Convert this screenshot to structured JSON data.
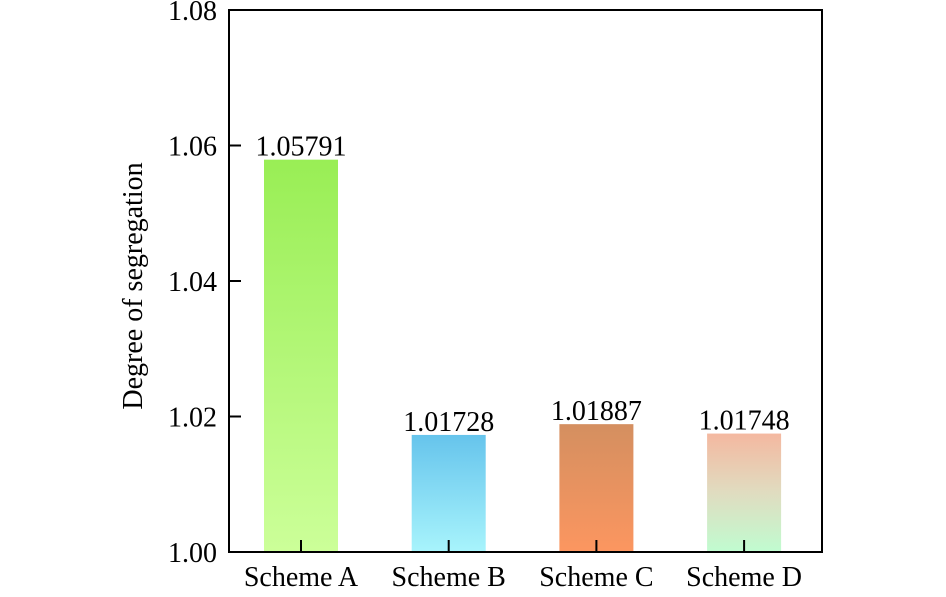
{
  "chart_data": {
    "type": "bar",
    "title": "",
    "xlabel": "",
    "ylabel": "Degree  of  segregation",
    "ylim": [
      1.0,
      1.08
    ],
    "yticks": [
      "1.00",
      "1.02",
      "1.04",
      "1.06",
      "1.08"
    ],
    "grid": false,
    "categories": [
      "Scheme A",
      "Scheme B",
      "Scheme C",
      "Scheme D"
    ],
    "values": [
      1.05791,
      1.01728,
      1.01887,
      1.01748
    ],
    "value_labels": [
      "1.05791",
      "1.01728",
      "1.01887",
      "1.01748"
    ],
    "colors": [
      [
        "#99ee55",
        "#ccff99"
      ],
      [
        "#66c4ec",
        "#a8f4fc"
      ],
      [
        "#d48f60",
        "#fc9660"
      ],
      [
        "#f4b8a0",
        "#e0dcc0",
        "#c0fcd0"
      ]
    ]
  }
}
